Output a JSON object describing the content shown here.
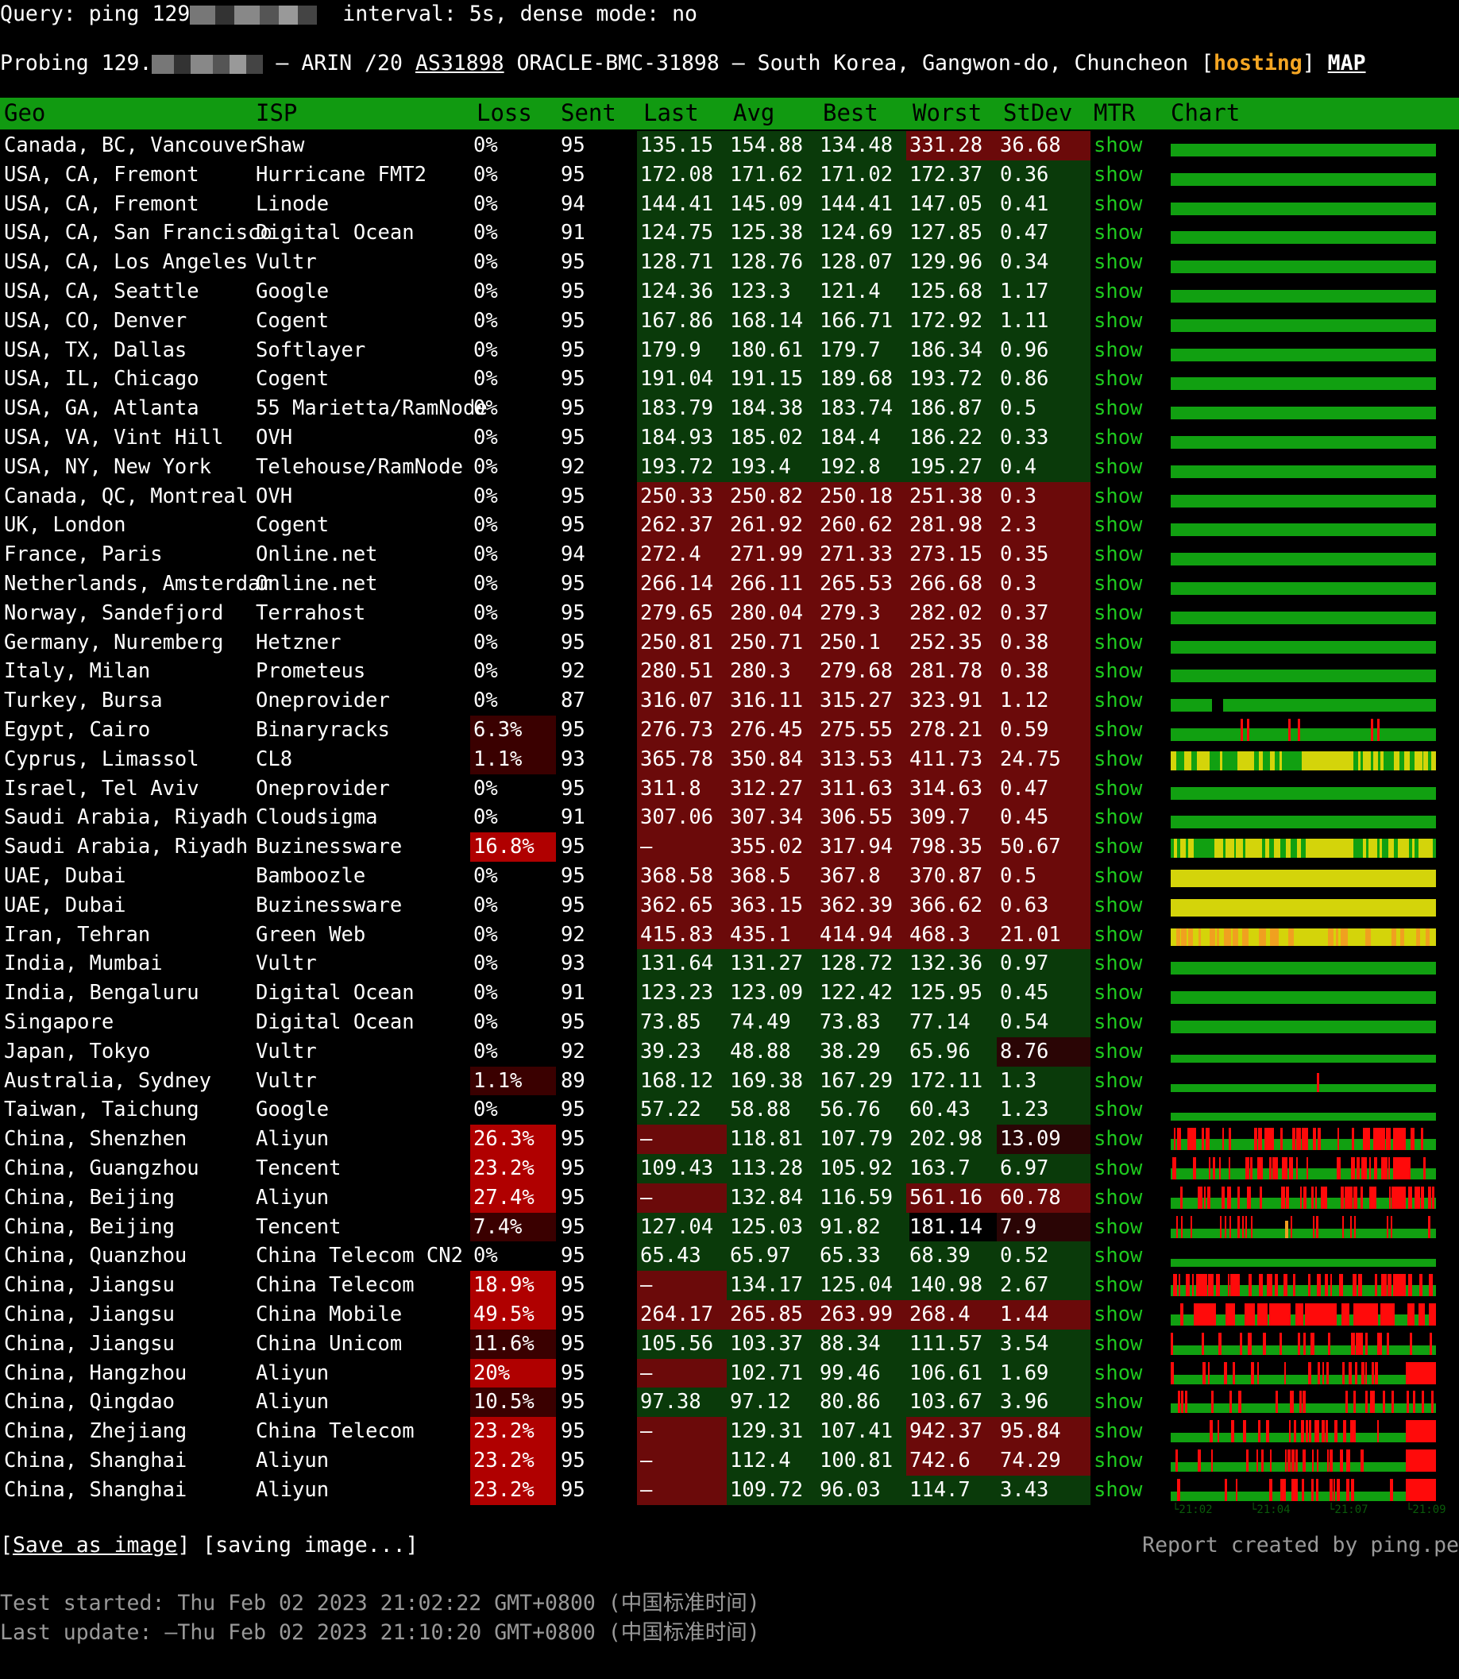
{
  "header": {
    "query_prefix": "Query: ping 129",
    "query_rest": "interval: 5s, dense mode: no",
    "probe_prefix": "Probing 129.",
    "probe_middle": " — ARIN /20 ",
    "asn": "AS31898",
    "probe_rest": " ORACLE-BMC-31898 — South Korea, Gangwon-do, Chuncheon [",
    "hosting": "hosting",
    "probe_close": "] ",
    "map": "MAP"
  },
  "columns": [
    "Geo",
    "ISP",
    "Loss",
    "Sent",
    "Last",
    "Avg",
    "Best",
    "Worst",
    "StDev",
    "MTR",
    "Chart"
  ],
  "rows": [
    {
      "geo": "Canada, BC, Vancouver",
      "isp": "Shaw",
      "loss": "0%",
      "sent": "95",
      "last": "135.15",
      "avg": "154.88",
      "best": "134.48",
      "worst": "331.28",
      "stdev": "36.68",
      "mtr": "show",
      "bg": {
        "worst": "red",
        "stdev": "red"
      },
      "chart": "flat"
    },
    {
      "geo": "USA, CA, Fremont",
      "isp": "Hurricane FMT2",
      "loss": "0%",
      "sent": "95",
      "last": "172.08",
      "avg": "171.62",
      "best": "171.02",
      "worst": "172.37",
      "stdev": "0.36",
      "mtr": "show",
      "bg": {},
      "chart": "flat"
    },
    {
      "geo": "USA, CA, Fremont",
      "isp": "Linode",
      "loss": "0%",
      "sent": "94",
      "last": "144.41",
      "avg": "145.09",
      "best": "144.41",
      "worst": "147.05",
      "stdev": "0.41",
      "mtr": "show",
      "bg": {},
      "chart": "flat"
    },
    {
      "geo": "USA, CA, San Francisco",
      "isp": "Digital Ocean",
      "loss": "0%",
      "sent": "91",
      "last": "124.75",
      "avg": "125.38",
      "best": "124.69",
      "worst": "127.85",
      "stdev": "0.47",
      "mtr": "show",
      "bg": {},
      "chart": "flat"
    },
    {
      "geo": "USA, CA, Los Angeles",
      "isp": "Vultr",
      "loss": "0%",
      "sent": "95",
      "last": "128.71",
      "avg": "128.76",
      "best": "128.07",
      "worst": "129.96",
      "stdev": "0.34",
      "mtr": "show",
      "bg": {},
      "chart": "flat"
    },
    {
      "geo": "USA, CA, Seattle",
      "isp": "Google",
      "loss": "0%",
      "sent": "95",
      "last": "124.36",
      "avg": "123.3",
      "best": "121.4",
      "worst": "125.68",
      "stdev": "1.17",
      "mtr": "show",
      "bg": {},
      "chart": "flat"
    },
    {
      "geo": "USA, CO, Denver",
      "isp": "Cogent",
      "loss": "0%",
      "sent": "95",
      "last": "167.86",
      "avg": "168.14",
      "best": "166.71",
      "worst": "172.92",
      "stdev": "1.11",
      "mtr": "show",
      "bg": {},
      "chart": "flat"
    },
    {
      "geo": "USA, TX, Dallas",
      "isp": "Softlayer",
      "loss": "0%",
      "sent": "95",
      "last": "179.9",
      "avg": "180.61",
      "best": "179.7",
      "worst": "186.34",
      "stdev": "0.96",
      "mtr": "show",
      "bg": {},
      "chart": "flat"
    },
    {
      "geo": "USA, IL, Chicago",
      "isp": "Cogent",
      "loss": "0%",
      "sent": "95",
      "last": "191.04",
      "avg": "191.15",
      "best": "189.68",
      "worst": "193.72",
      "stdev": "0.86",
      "mtr": "show",
      "bg": {},
      "chart": "flat"
    },
    {
      "geo": "USA, GA, Atlanta",
      "isp": "55 Marietta/RamNode",
      "loss": "0%",
      "sent": "95",
      "last": "183.79",
      "avg": "184.38",
      "best": "183.74",
      "worst": "186.87",
      "stdev": "0.5",
      "mtr": "show",
      "bg": {},
      "chart": "flat"
    },
    {
      "geo": "USA, VA, Vint Hill",
      "isp": "OVH",
      "loss": "0%",
      "sent": "95",
      "last": "184.93",
      "avg": "185.02",
      "best": "184.4",
      "worst": "186.22",
      "stdev": "0.33",
      "mtr": "show",
      "bg": {},
      "chart": "flat"
    },
    {
      "geo": "USA, NY, New York",
      "isp": "Telehouse/RamNode",
      "loss": "0%",
      "sent": "92",
      "last": "193.72",
      "avg": "193.4",
      "best": "192.8",
      "worst": "195.27",
      "stdev": "0.4",
      "mtr": "show",
      "bg": {},
      "chart": "flat"
    },
    {
      "geo": "Canada, QC, Montreal",
      "isp": "OVH",
      "loss": "0%",
      "sent": "95",
      "last": "250.33",
      "avg": "250.82",
      "best": "250.18",
      "worst": "251.38",
      "stdev": "0.3",
      "mtr": "show",
      "bg": {
        "all": "red"
      },
      "chart": "flat"
    },
    {
      "geo": "UK, London",
      "isp": "Cogent",
      "loss": "0%",
      "sent": "95",
      "last": "262.37",
      "avg": "261.92",
      "best": "260.62",
      "worst": "281.98",
      "stdev": "2.3",
      "mtr": "show",
      "bg": {
        "all": "red"
      },
      "chart": "flat"
    },
    {
      "geo": "France, Paris",
      "isp": "Online.net",
      "loss": "0%",
      "sent": "94",
      "last": "272.4",
      "avg": "271.99",
      "best": "271.33",
      "worst": "273.15",
      "stdev": "0.35",
      "mtr": "show",
      "bg": {
        "all": "red"
      },
      "chart": "flat"
    },
    {
      "geo": "Netherlands, Amsterdam",
      "isp": "Online.net",
      "loss": "0%",
      "sent": "95",
      "last": "266.14",
      "avg": "266.11",
      "best": "265.53",
      "worst": "266.68",
      "stdev": "0.3",
      "mtr": "show",
      "bg": {
        "all": "red"
      },
      "chart": "flat"
    },
    {
      "geo": "Norway, Sandefjord",
      "isp": "Terrahost",
      "loss": "0%",
      "sent": "95",
      "last": "279.65",
      "avg": "280.04",
      "best": "279.3",
      "worst": "282.02",
      "stdev": "0.37",
      "mtr": "show",
      "bg": {
        "all": "red"
      },
      "chart": "flat"
    },
    {
      "geo": "Germany, Nuremberg",
      "isp": "Hetzner",
      "loss": "0%",
      "sent": "95",
      "last": "250.81",
      "avg": "250.71",
      "best": "250.1",
      "worst": "252.35",
      "stdev": "0.38",
      "mtr": "show",
      "bg": {
        "all": "red"
      },
      "chart": "flat"
    },
    {
      "geo": "Italy, Milan",
      "isp": "Prometeus",
      "loss": "0%",
      "sent": "92",
      "last": "280.51",
      "avg": "280.3",
      "best": "279.68",
      "worst": "281.78",
      "stdev": "0.38",
      "mtr": "show",
      "bg": {
        "all": "red"
      },
      "chart": "flat"
    },
    {
      "geo": "Turkey, Bursa",
      "isp": "Oneprovider",
      "loss": "0%",
      "sent": "87",
      "last": "316.07",
      "avg": "316.11",
      "best": "315.27",
      "worst": "323.91",
      "stdev": "1.12",
      "mtr": "show",
      "bg": {
        "all": "red"
      },
      "chart": "gap"
    },
    {
      "geo": "Egypt, Cairo",
      "isp": "Binaryracks",
      "loss": "6.3%",
      "sent": "95",
      "last": "276.73",
      "avg": "276.45",
      "best": "275.55",
      "worst": "278.21",
      "stdev": "0.59",
      "mtr": "show",
      "bg": {
        "all": "red",
        "loss": "dred"
      },
      "chart": "fewred"
    },
    {
      "geo": "Cyprus, Limassol",
      "isp": "CL8",
      "loss": "1.1%",
      "sent": "93",
      "last": "365.78",
      "avg": "350.84",
      "best": "313.53",
      "worst": "411.73",
      "stdev": "24.75",
      "mtr": "show",
      "bg": {
        "all": "red",
        "loss": "dred"
      },
      "chart": "yellowmix"
    },
    {
      "geo": "Israel, Tel Aviv",
      "isp": "Oneprovider",
      "loss": "0%",
      "sent": "95",
      "last": "311.8",
      "avg": "312.27",
      "best": "311.63",
      "worst": "314.63",
      "stdev": "0.47",
      "mtr": "show",
      "bg": {
        "all": "red"
      },
      "chart": "flat"
    },
    {
      "geo": "Saudi Arabia, Riyadh",
      "isp": "Cloudsigma",
      "loss": "0%",
      "sent": "91",
      "last": "307.06",
      "avg": "307.34",
      "best": "306.55",
      "worst": "309.7",
      "stdev": "0.45",
      "mtr": "show",
      "bg": {
        "all": "red"
      },
      "chart": "flat"
    },
    {
      "geo": "Saudi Arabia, Riyadh",
      "isp": "Buzinessware",
      "loss": "16.8%",
      "sent": "95",
      "last": "–",
      "avg": "355.02",
      "best": "317.94",
      "worst": "798.35",
      "stdev": "50.67",
      "mtr": "show",
      "bg": {
        "all": "red",
        "loss": "lred"
      },
      "chart": "yellowmix"
    },
    {
      "geo": "UAE, Dubai",
      "isp": "Bamboozle",
      "loss": "0%",
      "sent": "95",
      "last": "368.58",
      "avg": "368.5",
      "best": "367.8",
      "worst": "370.87",
      "stdev": "0.5",
      "mtr": "show",
      "bg": {
        "all": "red"
      },
      "chart": "yellow"
    },
    {
      "geo": "UAE, Dubai",
      "isp": "Buzinessware",
      "loss": "0%",
      "sent": "95",
      "last": "362.65",
      "avg": "363.15",
      "best": "362.39",
      "worst": "366.62",
      "stdev": "0.63",
      "mtr": "show",
      "bg": {
        "all": "red"
      },
      "chart": "yellow"
    },
    {
      "geo": "Iran, Tehran",
      "isp": "Green Web",
      "loss": "0%",
      "sent": "92",
      "last": "415.83",
      "avg": "435.1",
      "best": "414.94",
      "worst": "468.3",
      "stdev": "21.01",
      "mtr": "show",
      "bg": {
        "all": "red"
      },
      "chart": "orange"
    },
    {
      "geo": "India, Mumbai",
      "isp": "Vultr",
      "loss": "0%",
      "sent": "93",
      "last": "131.64",
      "avg": "131.27",
      "best": "128.72",
      "worst": "132.36",
      "stdev": "0.97",
      "mtr": "show",
      "bg": {},
      "chart": "flat"
    },
    {
      "geo": "India, Bengaluru",
      "isp": "Digital Ocean",
      "loss": "0%",
      "sent": "91",
      "last": "123.23",
      "avg": "123.09",
      "best": "122.42",
      "worst": "125.95",
      "stdev": "0.45",
      "mtr": "show",
      "bg": {},
      "chart": "flat"
    },
    {
      "geo": "Singapore",
      "isp": "Digital Ocean",
      "loss": "0%",
      "sent": "95",
      "last": "73.85",
      "avg": "74.49",
      "best": "73.83",
      "worst": "77.14",
      "stdev": "0.54",
      "mtr": "show",
      "bg": {},
      "chart": "flat"
    },
    {
      "geo": "Japan, Tokyo",
      "isp": "Vultr",
      "loss": "0%",
      "sent": "92",
      "last": "39.23",
      "avg": "48.88",
      "best": "38.29",
      "worst": "65.96",
      "stdev": "8.76",
      "mtr": "show",
      "bg": {
        "stdev": "dred"
      },
      "chart": "thin"
    },
    {
      "geo": "Australia, Sydney",
      "isp": "Vultr",
      "loss": "1.1%",
      "sent": "89",
      "last": "168.12",
      "avg": "169.38",
      "best": "167.29",
      "worst": "172.11",
      "stdev": "1.3",
      "mtr": "show",
      "bg": {
        "loss": "dred"
      },
      "chart": "thin1"
    },
    {
      "geo": "Taiwan, Taichung",
      "isp": "Google",
      "loss": "0%",
      "sent": "95",
      "last": "57.22",
      "avg": "58.88",
      "best": "56.76",
      "worst": "60.43",
      "stdev": "1.23",
      "mtr": "show",
      "bg": {},
      "chart": "thin"
    },
    {
      "geo": "China, Shenzhen",
      "isp": "Aliyun",
      "loss": "26.3%",
      "sent": "95",
      "last": "–",
      "avg": "118.81",
      "best": "107.79",
      "worst": "202.98",
      "stdev": "13.09",
      "mtr": "show",
      "bg": {
        "loss": "lred",
        "last": "red",
        "stdev": "dred"
      },
      "chart": "redmix"
    },
    {
      "geo": "China, Guangzhou",
      "isp": "Tencent",
      "loss": "23.2%",
      "sent": "95",
      "last": "109.43",
      "avg": "113.28",
      "best": "105.92",
      "worst": "163.7",
      "stdev": "6.97",
      "mtr": "show",
      "bg": {
        "loss": "lred"
      },
      "chart": "redmix"
    },
    {
      "geo": "China, Beijing",
      "isp": "Aliyun",
      "loss": "27.4%",
      "sent": "95",
      "last": "–",
      "avg": "132.84",
      "best": "116.59",
      "worst": "561.16",
      "stdev": "60.78",
      "mtr": "show",
      "bg": {
        "loss": "lred",
        "last": "red",
        "worst": "red",
        "stdev": "red"
      },
      "chart": "redmix"
    },
    {
      "geo": "China, Beijing",
      "isp": "Tencent",
      "loss": "7.4%",
      "sent": "95",
      "last": "127.04",
      "avg": "125.03",
      "best": "91.82",
      "worst": "181.14",
      "stdev": "7.9",
      "mtr": "show",
      "bg": {
        "loss": "dred",
        "worst": "none",
        "stdev": "dred"
      },
      "chart": "fewred2"
    },
    {
      "geo": "China, Quanzhou",
      "isp": "China Telecom CN2",
      "loss": "0%",
      "sent": "95",
      "last": "65.43",
      "avg": "65.97",
      "best": "65.33",
      "worst": "68.39",
      "stdev": "0.52",
      "mtr": "show",
      "bg": {},
      "chart": "thin"
    },
    {
      "geo": "China, Jiangsu",
      "isp": "China Telecom",
      "loss": "18.9%",
      "sent": "95",
      "last": "–",
      "avg": "134.17",
      "best": "125.04",
      "worst": "140.98",
      "stdev": "2.67",
      "mtr": "show",
      "bg": {
        "loss": "lred",
        "last": "red"
      },
      "chart": "redmix"
    },
    {
      "geo": "China, Jiangsu",
      "isp": "China Mobile",
      "loss": "49.5%",
      "sent": "95",
      "last": "264.17",
      "avg": "265.85",
      "best": "263.99",
      "worst": "268.4",
      "stdev": "1.44",
      "mtr": "show",
      "bg": {
        "all": "red",
        "loss": "lred"
      },
      "chart": "redheavy"
    },
    {
      "geo": "China, Jiangsu",
      "isp": "China Unicom",
      "loss": "11.6%",
      "sent": "95",
      "last": "105.56",
      "avg": "103.37",
      "best": "88.34",
      "worst": "111.57",
      "stdev": "3.54",
      "mtr": "show",
      "bg": {
        "loss": "dred"
      },
      "chart": "fewred3"
    },
    {
      "geo": "China, Hangzhou",
      "isp": "Aliyun",
      "loss": "20%",
      "sent": "95",
      "last": "–",
      "avg": "102.71",
      "best": "99.46",
      "worst": "106.61",
      "stdev": "1.69",
      "mtr": "show",
      "bg": {
        "loss": "lred",
        "last": "red"
      },
      "chart": "redend"
    },
    {
      "geo": "China, Qingdao",
      "isp": "Aliyun",
      "loss": "10.5%",
      "sent": "95",
      "last": "97.38",
      "avg": "97.12",
      "best": "80.86",
      "worst": "103.67",
      "stdev": "3.96",
      "mtr": "show",
      "bg": {
        "loss": "dred"
      },
      "chart": "fewred3"
    },
    {
      "geo": "China, Zhejiang",
      "isp": "China Telecom",
      "loss": "23.2%",
      "sent": "95",
      "last": "–",
      "avg": "129.31",
      "best": "107.41",
      "worst": "942.37",
      "stdev": "95.84",
      "mtr": "show",
      "bg": {
        "loss": "lred",
        "last": "red",
        "worst": "red",
        "stdev": "red"
      },
      "chart": "redend"
    },
    {
      "geo": "China, Shanghai",
      "isp": "Aliyun",
      "loss": "23.2%",
      "sent": "95",
      "last": "–",
      "avg": "112.4",
      "best": "100.81",
      "worst": "742.6",
      "stdev": "74.29",
      "mtr": "show",
      "bg": {
        "loss": "lred",
        "last": "red",
        "worst": "red",
        "stdev": "red"
      },
      "chart": "redend"
    },
    {
      "geo": "China, Shanghai",
      "isp": "Aliyun",
      "loss": "23.2%",
      "sent": "95",
      "last": "–",
      "avg": "109.72",
      "best": "96.03",
      "worst": "114.7",
      "stdev": "3.43",
      "mtr": "show",
      "bg": {
        "loss": "lred",
        "last": "red"
      },
      "chart": "redend"
    }
  ],
  "chart_times": [
    "21:02",
    "21:04",
    "21:07",
    "21:09"
  ],
  "footer": {
    "save_open": "[",
    "save": "Save as image",
    "save_close": "] [saving image...]",
    "credit": "Report created by ping.pe",
    "started": "Test started: Thu Feb 02 2023 21:02:22 GMT+0800 (中国标准时间)",
    "updated": "Last update: —Thu Feb 02 2023 21:10:20 GMT+0800 (中国标准时间)"
  },
  "colors": {
    "header_green": "#119a11",
    "good_green": "#0a3a0a",
    "bad_red": "#6b0a0a",
    "loss_red": "#b00000",
    "show_green": "#1ec91e",
    "hosting": "#f5a623"
  }
}
